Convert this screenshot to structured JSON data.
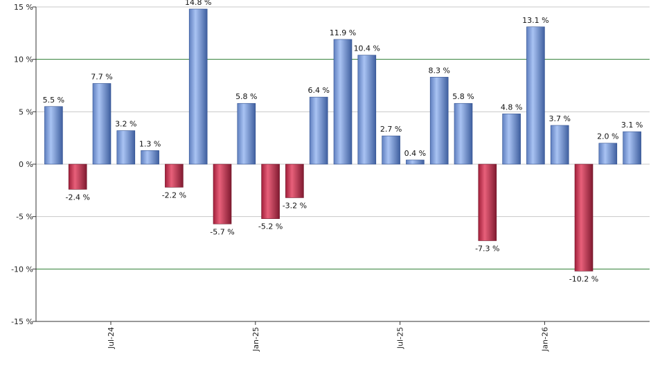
{
  "chart_data": {
    "type": "bar",
    "title": "",
    "xlabel": "",
    "ylabel": "",
    "ylim": [
      -15,
      15
    ],
    "yticks": [
      15,
      10,
      5,
      0,
      -5,
      -10,
      -15
    ],
    "ytick_labels": [
      "15 %",
      "10 %",
      "5 %",
      "0 %",
      "-5 %",
      "-10 %",
      "-15 %"
    ],
    "reference_lines": [
      10,
      -10
    ],
    "grid": true,
    "x_axis_labels": [
      {
        "index": 2,
        "label": "Jul-24"
      },
      {
        "index": 8,
        "label": "Jan-25"
      },
      {
        "index": 14,
        "label": "Jul-25"
      },
      {
        "index": 20,
        "label": "Jan-26"
      }
    ],
    "values": [
      5.5,
      -2.4,
      7.7,
      3.2,
      1.3,
      -2.2,
      14.8,
      -5.7,
      5.8,
      -5.2,
      -3.2,
      6.4,
      11.9,
      10.4,
      2.7,
      0.4,
      8.3,
      5.8,
      -7.3,
      4.8,
      13.1,
      3.7,
      -10.2,
      2.0,
      3.1
    ],
    "value_labels": [
      "5.5 %",
      "-2.4 %",
      "7.7 %",
      "3.2 %",
      "1.3 %",
      "-2.2 %",
      "14.8 %",
      "-5.7 %",
      "5.8 %",
      "-5.2 %",
      "-3.2 %",
      "6.4 %",
      "11.9 %",
      "10.4 %",
      "2.7 %",
      "0.4 %",
      "8.3 %",
      "5.8 %",
      "-7.3 %",
      "4.8 %",
      "13.1 %",
      "3.7 %",
      "-10.2 %",
      "2.0 %",
      "3.1 %"
    ],
    "colors": {
      "positive": "#7f9fdf",
      "negative": "#c8304f",
      "grid": "#c8c8c8",
      "reference": "#2e7d32",
      "axis": "#333333"
    }
  }
}
